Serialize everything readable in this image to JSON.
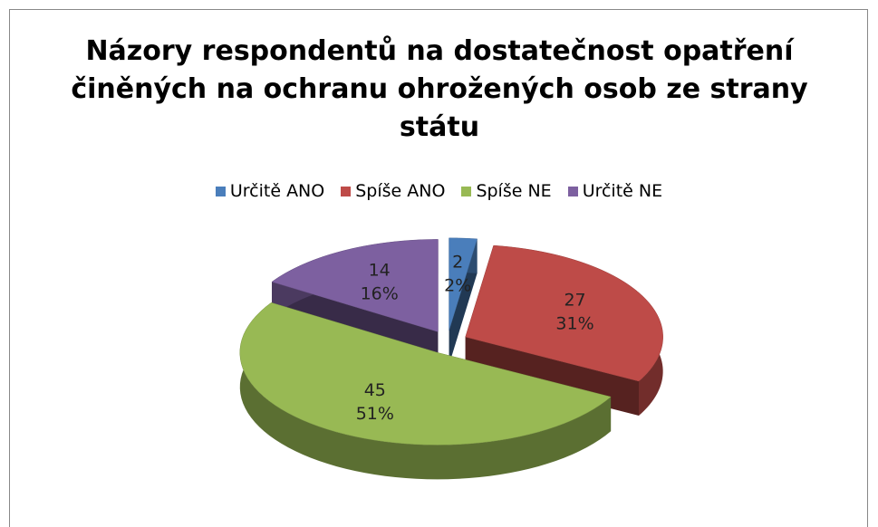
{
  "chart_data": {
    "type": "pie",
    "title": "Názory respondentů na dostatečnost opatření činěných na ochranu ohrožených osob ze strany státu",
    "categories": [
      "Určitě ANO",
      "Spíše ANO",
      "Spíše NE",
      "Určitě NE"
    ],
    "values": [
      2,
      27,
      45,
      14
    ],
    "percent_labels": [
      "2%",
      "31%",
      "51%",
      "16%"
    ],
    "colors": [
      "#4a7ebb",
      "#be4b48",
      "#98b954",
      "#7d60a0"
    ],
    "legend": "top"
  }
}
